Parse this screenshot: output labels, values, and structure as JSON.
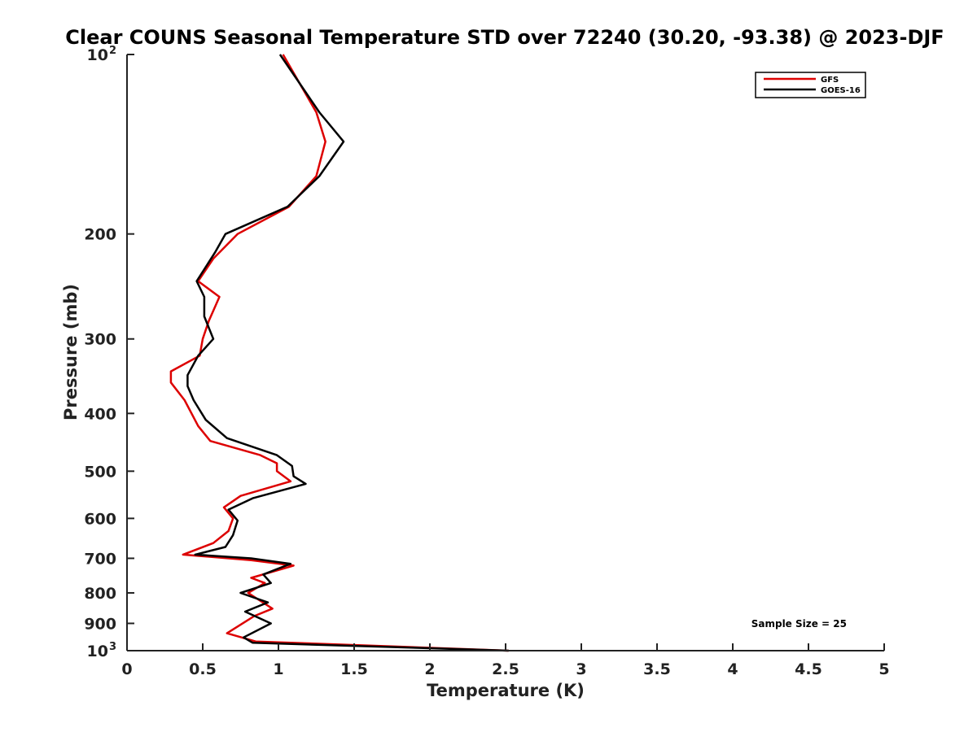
{
  "chart_data": {
    "type": "line",
    "title": "Clear COUNS Seasonal Temperature STD over 72240 (30.20, -93.38) @ 2023-DJF",
    "xlabel": "Temperature (K)",
    "ylabel": "Pressure (mb)",
    "xlim": [
      0,
      5
    ],
    "ylim": [
      100,
      1000
    ],
    "y_scale": "log",
    "y_inverted": true,
    "grid": false,
    "legend_position": "top-right",
    "x_ticks": [
      {
        "value": 0,
        "label": "0"
      },
      {
        "value": 0.5,
        "label": "0.5"
      },
      {
        "value": 1,
        "label": "1"
      },
      {
        "value": 1.5,
        "label": "1.5"
      },
      {
        "value": 2,
        "label": "2"
      },
      {
        "value": 2.5,
        "label": "2.5"
      },
      {
        "value": 3,
        "label": "3"
      },
      {
        "value": 3.5,
        "label": "3.5"
      },
      {
        "value": 4,
        "label": "4"
      },
      {
        "value": 4.5,
        "label": "4.5"
      },
      {
        "value": 5,
        "label": "5"
      }
    ],
    "y_ticks": [
      {
        "value": 100,
        "label": "10",
        "sup": "2"
      },
      {
        "value": 200,
        "label": "200",
        "sup": ""
      },
      {
        "value": 300,
        "label": "300",
        "sup": ""
      },
      {
        "value": 400,
        "label": "400",
        "sup": ""
      },
      {
        "value": 500,
        "label": "500",
        "sup": ""
      },
      {
        "value": 600,
        "label": "600",
        "sup": ""
      },
      {
        "value": 700,
        "label": "700",
        "sup": ""
      },
      {
        "value": 800,
        "label": "800",
        "sup": ""
      },
      {
        "value": 900,
        "label": "900",
        "sup": ""
      },
      {
        "value": 1000,
        "label": "10",
        "sup": "3"
      }
    ],
    "series": [
      {
        "name": "GFS",
        "color": "#dd0000",
        "points": [
          [
            1.03,
            100
          ],
          [
            1.25,
            125
          ],
          [
            1.31,
            140
          ],
          [
            1.25,
            160
          ],
          [
            1.07,
            180
          ],
          [
            0.73,
            200
          ],
          [
            0.57,
            220
          ],
          [
            0.47,
            240
          ],
          [
            0.61,
            255
          ],
          [
            0.54,
            280
          ],
          [
            0.5,
            300
          ],
          [
            0.48,
            320
          ],
          [
            0.29,
            340
          ],
          [
            0.29,
            355
          ],
          [
            0.38,
            380
          ],
          [
            0.47,
            420
          ],
          [
            0.55,
            445
          ],
          [
            0.88,
            470
          ],
          [
            0.99,
            485
          ],
          [
            0.99,
            500
          ],
          [
            1.08,
            520
          ],
          [
            0.75,
            550
          ],
          [
            0.64,
            575
          ],
          [
            0.7,
            600
          ],
          [
            0.67,
            630
          ],
          [
            0.57,
            660
          ],
          [
            0.37,
            690
          ],
          [
            0.82,
            705
          ],
          [
            1.1,
            720
          ],
          [
            0.82,
            755
          ],
          [
            0.91,
            770
          ],
          [
            0.8,
            800
          ],
          [
            0.96,
            850
          ],
          [
            0.84,
            875
          ],
          [
            0.66,
            935
          ],
          [
            0.85,
            965
          ],
          [
            2.52,
            1000
          ]
        ]
      },
      {
        "name": "GOES-16",
        "color": "#000000",
        "points": [
          [
            1.01,
            100
          ],
          [
            1.27,
            125
          ],
          [
            1.43,
            140
          ],
          [
            1.27,
            160
          ],
          [
            1.06,
            180
          ],
          [
            0.65,
            200
          ],
          [
            0.58,
            215
          ],
          [
            0.46,
            240
          ],
          [
            0.51,
            255
          ],
          [
            0.51,
            275
          ],
          [
            0.57,
            300
          ],
          [
            0.47,
            320
          ],
          [
            0.4,
            345
          ],
          [
            0.4,
            360
          ],
          [
            0.44,
            380
          ],
          [
            0.52,
            410
          ],
          [
            0.66,
            440
          ],
          [
            0.99,
            470
          ],
          [
            1.09,
            490
          ],
          [
            1.1,
            510
          ],
          [
            1.18,
            525
          ],
          [
            0.83,
            555
          ],
          [
            0.67,
            580
          ],
          [
            0.73,
            605
          ],
          [
            0.7,
            640
          ],
          [
            0.65,
            670
          ],
          [
            0.45,
            690
          ],
          [
            0.82,
            700
          ],
          [
            1.08,
            715
          ],
          [
            0.9,
            745
          ],
          [
            0.95,
            770
          ],
          [
            0.75,
            800
          ],
          [
            0.93,
            830
          ],
          [
            0.78,
            860
          ],
          [
            0.95,
            900
          ],
          [
            0.77,
            950
          ],
          [
            0.83,
            970
          ],
          [
            2.52,
            1000
          ]
        ]
      }
    ],
    "annotation": "Sample Size = 25"
  }
}
